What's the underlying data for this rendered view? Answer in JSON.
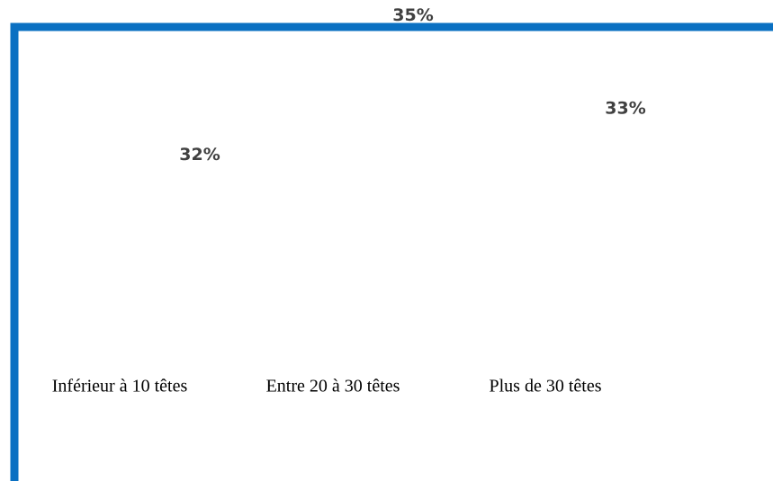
{
  "chart_data": {
    "type": "bar",
    "categories": [
      "Inférieur à 10 têtes",
      "Entre 20 à 30 têtes",
      "Plus de 30 têtes"
    ],
    "values": [
      32,
      35,
      33
    ],
    "value_labels": [
      "32%",
      "35%",
      "33%"
    ],
    "color": "#ffffff",
    "ylim": [
      30,
      36
    ]
  }
}
